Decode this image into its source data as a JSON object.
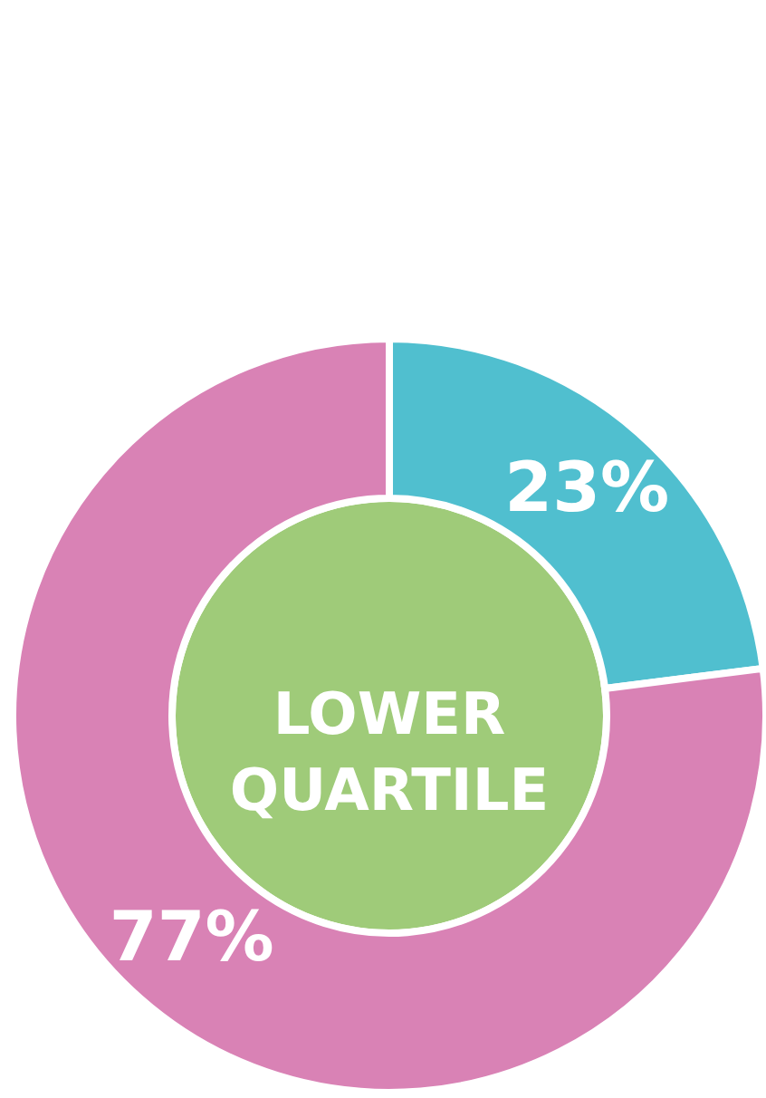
{
  "chart_data": {
    "type": "donut",
    "title": "LOWER QUARTILE",
    "categories": [
      null,
      null
    ],
    "values": [
      23,
      77
    ],
    "colors": [
      "#50bfcf",
      "#d982b5"
    ],
    "value_labels": [
      "23%",
      "77%"
    ],
    "legend": false
  }
}
